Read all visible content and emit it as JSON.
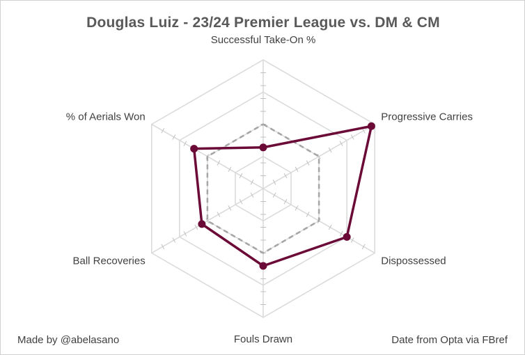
{
  "chart_data": {
    "type": "radar",
    "title": "Douglas Luiz - 23/24 Premier League vs. DM & CM",
    "axes": [
      "Successful Take-On %",
      "Progressive Carries",
      "Dispossessed",
      "Fouls Drawn",
      "Ball Recoveries",
      "% of Aerials Won"
    ],
    "rlim": [
      0,
      100
    ],
    "grid_rings": 4,
    "series": [
      {
        "values": [
          32,
          97,
          75,
          60,
          55,
          62
        ],
        "color": "#6b0a36",
        "style": "solid",
        "markers": true
      },
      {
        "values": [
          50,
          50,
          50,
          50,
          50,
          50
        ],
        "color": "#a6a6a6",
        "style": "dashed",
        "markers": false
      }
    ],
    "grid": true,
    "legend": "none"
  },
  "footer": {
    "left": "Made by @abelasano",
    "right": "Date from Opta via FBref"
  }
}
